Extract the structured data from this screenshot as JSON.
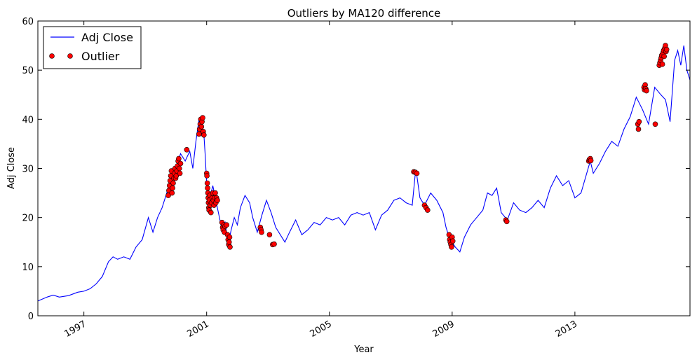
{
  "chart_data": {
    "type": "line",
    "title": "Outliers by MA120 difference",
    "xlabel": "Year",
    "ylabel": "Adj Close",
    "xlim": [
      1995.5,
      2016.75
    ],
    "ylim": [
      0,
      60
    ],
    "x_ticks": [
      1997,
      2001,
      2005,
      2009,
      2013
    ],
    "x_tick_labels": [
      "1997",
      "2001",
      "2005",
      "2009",
      "2013"
    ],
    "y_ticks": [
      0,
      10,
      20,
      30,
      40,
      50,
      60
    ],
    "y_tick_labels": [
      "0",
      "10",
      "20",
      "30",
      "40",
      "50",
      "60"
    ],
    "grid": false,
    "legend_position": "top-left",
    "series": [
      {
        "name": "Adj Close",
        "kind": "line",
        "color": "#0000ff",
        "points": [
          [
            1995.5,
            3.0
          ],
          [
            1995.8,
            3.8
          ],
          [
            1996.0,
            4.2
          ],
          [
            1996.2,
            3.8
          ],
          [
            1996.5,
            4.1
          ],
          [
            1996.8,
            4.8
          ],
          [
            1997.0,
            5.0
          ],
          [
            1997.2,
            5.5
          ],
          [
            1997.4,
            6.5
          ],
          [
            1997.6,
            8.0
          ],
          [
            1997.8,
            11.0
          ],
          [
            1997.95,
            12.0
          ],
          [
            1998.1,
            11.5
          ],
          [
            1998.3,
            12.0
          ],
          [
            1998.5,
            11.5
          ],
          [
            1998.7,
            14.0
          ],
          [
            1998.9,
            15.5
          ],
          [
            1999.1,
            20.0
          ],
          [
            1999.25,
            17.0
          ],
          [
            1999.4,
            20.0
          ],
          [
            1999.55,
            22.0
          ],
          [
            1999.7,
            25.0
          ],
          [
            1999.85,
            28.0
          ],
          [
            2000.0,
            30.0
          ],
          [
            2000.15,
            33.0
          ],
          [
            2000.3,
            31.5
          ],
          [
            2000.45,
            33.5
          ],
          [
            2000.55,
            30.0
          ],
          [
            2000.65,
            35.5
          ],
          [
            2000.75,
            40.0
          ],
          [
            2000.85,
            36.5
          ],
          [
            2000.9,
            38.0
          ],
          [
            2000.95,
            33.0
          ],
          [
            2001.0,
            27.0
          ],
          [
            2001.1,
            24.0
          ],
          [
            2001.2,
            26.5
          ],
          [
            2001.3,
            23.5
          ],
          [
            2001.4,
            20.5
          ],
          [
            2001.5,
            17.5
          ],
          [
            2001.6,
            19.0
          ],
          [
            2001.7,
            14.5
          ],
          [
            2001.8,
            17.5
          ],
          [
            2001.9,
            20.0
          ],
          [
            2002.0,
            18.5
          ],
          [
            2002.1,
            22.0
          ],
          [
            2002.25,
            24.5
          ],
          [
            2002.4,
            23.0
          ],
          [
            2002.5,
            20.0
          ],
          [
            2002.65,
            17.0
          ],
          [
            2002.8,
            20.5
          ],
          [
            2002.95,
            23.5
          ],
          [
            2003.1,
            21.0
          ],
          [
            2003.25,
            18.0
          ],
          [
            2003.4,
            16.5
          ],
          [
            2003.55,
            15.0
          ],
          [
            2003.7,
            17.0
          ],
          [
            2003.9,
            19.5
          ],
          [
            2004.1,
            16.5
          ],
          [
            2004.3,
            17.5
          ],
          [
            2004.5,
            19.0
          ],
          [
            2004.7,
            18.5
          ],
          [
            2004.9,
            20.0
          ],
          [
            2005.1,
            19.5
          ],
          [
            2005.3,
            20.0
          ],
          [
            2005.5,
            18.5
          ],
          [
            2005.7,
            20.5
          ],
          [
            2005.9,
            21.0
          ],
          [
            2006.1,
            20.5
          ],
          [
            2006.3,
            21.0
          ],
          [
            2006.5,
            17.5
          ],
          [
            2006.7,
            20.5
          ],
          [
            2006.9,
            21.5
          ],
          [
            2007.1,
            23.5
          ],
          [
            2007.3,
            24.0
          ],
          [
            2007.5,
            23.0
          ],
          [
            2007.7,
            22.5
          ],
          [
            2007.8,
            29.0
          ],
          [
            2007.85,
            28.5
          ],
          [
            2007.95,
            24.0
          ],
          [
            2008.1,
            22.5
          ],
          [
            2008.3,
            25.0
          ],
          [
            2008.5,
            23.5
          ],
          [
            2008.7,
            21.0
          ],
          [
            2008.8,
            18.0
          ],
          [
            2008.9,
            16.0
          ],
          [
            2009.0,
            15.0
          ],
          [
            2009.1,
            14.0
          ],
          [
            2009.25,
            13.0
          ],
          [
            2009.4,
            16.0
          ],
          [
            2009.6,
            18.5
          ],
          [
            2009.8,
            20.0
          ],
          [
            2010.0,
            21.5
          ],
          [
            2010.15,
            25.0
          ],
          [
            2010.3,
            24.5
          ],
          [
            2010.45,
            26.0
          ],
          [
            2010.6,
            21.0
          ],
          [
            2010.8,
            19.5
          ],
          [
            2011.0,
            23.0
          ],
          [
            2011.2,
            21.5
          ],
          [
            2011.4,
            21.0
          ],
          [
            2011.6,
            22.0
          ],
          [
            2011.8,
            23.5
          ],
          [
            2012.0,
            22.0
          ],
          [
            2012.2,
            26.0
          ],
          [
            2012.4,
            28.5
          ],
          [
            2012.6,
            26.5
          ],
          [
            2012.8,
            27.5
          ],
          [
            2013.0,
            24.0
          ],
          [
            2013.2,
            25.0
          ],
          [
            2013.5,
            31.5
          ],
          [
            2013.6,
            29.0
          ],
          [
            2013.8,
            31.0
          ],
          [
            2014.0,
            33.5
          ],
          [
            2014.2,
            35.5
          ],
          [
            2014.4,
            34.5
          ],
          [
            2014.6,
            38.0
          ],
          [
            2014.8,
            40.5
          ],
          [
            2015.0,
            44.5
          ],
          [
            2015.2,
            42.0
          ],
          [
            2015.4,
            39.0
          ],
          [
            2015.6,
            46.5
          ],
          [
            2015.8,
            45.0
          ],
          [
            2015.95,
            44.0
          ],
          [
            2016.1,
            39.5
          ],
          [
            2016.25,
            52.0
          ],
          [
            2016.35,
            54.0
          ],
          [
            2016.45,
            51.0
          ],
          [
            2016.55,
            55.0
          ],
          [
            2016.65,
            50.0
          ],
          [
            2016.75,
            48.0
          ]
        ]
      },
      {
        "name": "Outlier",
        "kind": "scatter",
        "color": "#ff0000",
        "points": [
          [
            1999.75,
            24.5
          ],
          [
            1999.77,
            25.5
          ],
          [
            1999.79,
            26.5
          ],
          [
            1999.81,
            27.5
          ],
          [
            1999.83,
            28.5
          ],
          [
            1999.85,
            29.5
          ],
          [
            1999.87,
            25.0
          ],
          [
            1999.89,
            26.0
          ],
          [
            1999.91,
            27.0
          ],
          [
            1999.93,
            28.0
          ],
          [
            1999.95,
            29.0
          ],
          [
            1999.97,
            30.0
          ],
          [
            1999.99,
            28.0
          ],
          [
            2000.01,
            28.5
          ],
          [
            2000.03,
            29.5
          ],
          [
            2000.05,
            30.5
          ],
          [
            2000.07,
            31.5
          ],
          [
            2000.09,
            32.0
          ],
          [
            2000.11,
            30.0
          ],
          [
            2000.13,
            29.0
          ],
          [
            2000.15,
            31.0
          ],
          [
            2000.35,
            33.8
          ],
          [
            2000.75,
            37.0
          ],
          [
            2000.77,
            38.0
          ],
          [
            2000.79,
            39.0
          ],
          [
            2000.81,
            40.0
          ],
          [
            2000.83,
            38.5
          ],
          [
            2000.85,
            39.5
          ],
          [
            2000.87,
            40.3
          ],
          [
            2000.89,
            37.5
          ],
          [
            2000.91,
            36.8
          ],
          [
            2001.0,
            29.0
          ],
          [
            2001.01,
            28.5
          ],
          [
            2001.02,
            27.0
          ],
          [
            2001.03,
            26.0
          ],
          [
            2001.04,
            25.0
          ],
          [
            2001.05,
            24.0
          ],
          [
            2001.06,
            23.0
          ],
          [
            2001.07,
            22.0
          ],
          [
            2001.08,
            21.5
          ],
          [
            2001.09,
            23.5
          ],
          [
            2001.1,
            24.5
          ],
          [
            2001.12,
            22.5
          ],
          [
            2001.14,
            21.0
          ],
          [
            2001.16,
            23.0
          ],
          [
            2001.18,
            24.0
          ],
          [
            2001.2,
            25.0
          ],
          [
            2001.22,
            23.5
          ],
          [
            2001.24,
            22.5
          ],
          [
            2001.26,
            24.0
          ],
          [
            2001.28,
            25.0
          ],
          [
            2001.3,
            23.0
          ],
          [
            2001.32,
            24.0
          ],
          [
            2001.35,
            23.5
          ],
          [
            2001.5,
            19.0
          ],
          [
            2001.52,
            18.0
          ],
          [
            2001.54,
            17.5
          ],
          [
            2001.56,
            18.5
          ],
          [
            2001.58,
            17.0
          ],
          [
            2001.6,
            18.2
          ],
          [
            2001.65,
            18.5
          ],
          [
            2001.68,
            16.5
          ],
          [
            2001.7,
            15.5
          ],
          [
            2001.72,
            14.5
          ],
          [
            2001.73,
            15.0
          ],
          [
            2001.75,
            16.0
          ],
          [
            2001.76,
            14.0
          ],
          [
            2002.75,
            18.0
          ],
          [
            2002.77,
            17.5
          ],
          [
            2002.79,
            17.0
          ],
          [
            2003.05,
            16.5
          ],
          [
            2003.15,
            14.5
          ],
          [
            2003.2,
            14.6
          ],
          [
            2007.75,
            29.3
          ],
          [
            2007.8,
            29.2
          ],
          [
            2007.85,
            29.0
          ],
          [
            2008.1,
            22.5
          ],
          [
            2008.15,
            22.0
          ],
          [
            2008.2,
            21.5
          ],
          [
            2008.9,
            16.5
          ],
          [
            2008.92,
            15.5
          ],
          [
            2008.94,
            15.0
          ],
          [
            2008.96,
            14.5
          ],
          [
            2008.98,
            14.0
          ],
          [
            2009.0,
            16.0
          ],
          [
            2009.02,
            15.2
          ],
          [
            2010.75,
            19.5
          ],
          [
            2010.78,
            19.2
          ],
          [
            2013.45,
            31.5
          ],
          [
            2013.47,
            31.8
          ],
          [
            2013.5,
            32.0
          ],
          [
            2013.52,
            31.6
          ],
          [
            2015.05,
            39.0
          ],
          [
            2015.07,
            38.0
          ],
          [
            2015.09,
            39.5
          ],
          [
            2015.25,
            46.5
          ],
          [
            2015.27,
            46.0
          ],
          [
            2015.29,
            47.0
          ],
          [
            2015.31,
            46.2
          ],
          [
            2015.33,
            45.8
          ],
          [
            2015.62,
            39.0
          ],
          [
            2015.75,
            51.0
          ],
          [
            2015.77,
            51.5
          ],
          [
            2015.79,
            52.0
          ],
          [
            2015.81,
            52.5
          ],
          [
            2015.83,
            53.0
          ],
          [
            2015.85,
            51.2
          ],
          [
            2015.87,
            53.5
          ],
          [
            2015.89,
            54.0
          ],
          [
            2015.91,
            52.8
          ],
          [
            2015.93,
            54.5
          ],
          [
            2015.95,
            55.0
          ],
          [
            2015.97,
            53.8
          ],
          [
            2015.99,
            54.2
          ]
        ]
      }
    ]
  }
}
